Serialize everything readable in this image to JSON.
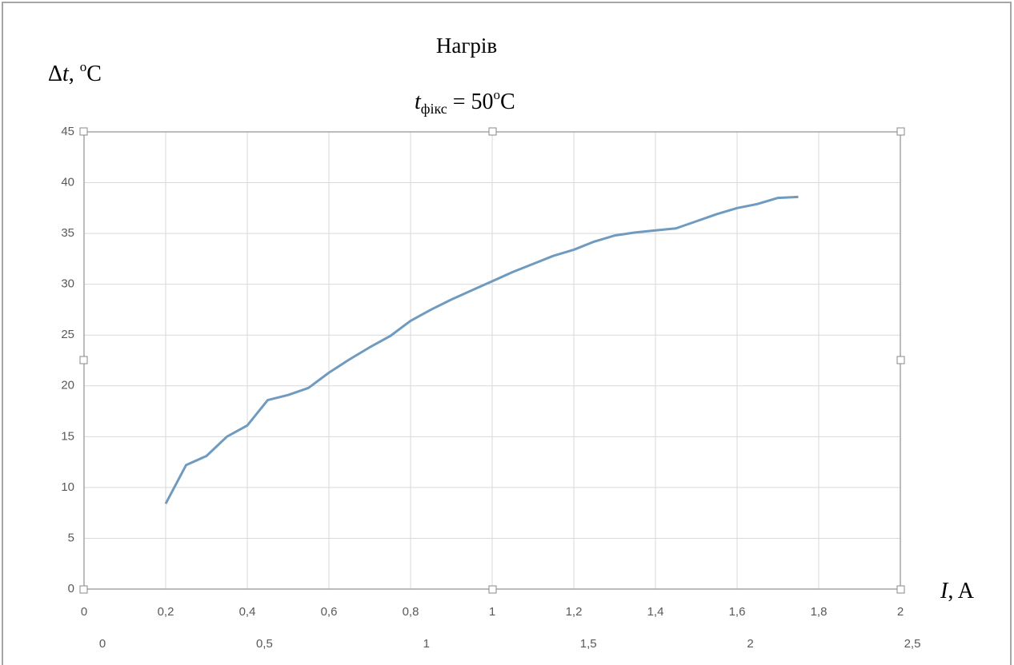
{
  "chart_data": {
    "type": "line",
    "title": "Нагрів",
    "subtitle_parts": [
      "t",
      "фікс",
      " = 50",
      "o",
      "C"
    ],
    "y_label_parts": [
      "Δ",
      "t",
      ", ",
      "o",
      "C"
    ],
    "x_label_parts": [
      "I",
      ", A"
    ],
    "x": [
      0.2,
      0.25,
      0.3,
      0.35,
      0.4,
      0.45,
      0.5,
      0.55,
      0.6,
      0.65,
      0.7,
      0.75,
      0.8,
      0.85,
      0.9,
      0.95,
      1.0,
      1.05,
      1.1,
      1.15,
      1.2,
      1.25,
      1.3,
      1.35,
      1.4,
      1.45,
      1.5,
      1.55,
      1.6,
      1.65,
      1.7,
      1.75
    ],
    "series": [
      {
        "color": "#6f9bc0",
        "values": [
          8.4,
          12.2,
          13.1,
          15.0,
          16.1,
          18.6,
          19.1,
          19.8,
          21.3,
          22.6,
          23.8,
          24.9,
          26.4,
          27.5,
          28.5,
          29.4,
          30.3,
          31.2,
          32.0,
          32.8,
          33.4,
          34.2,
          34.8,
          35.1,
          35.3,
          35.5,
          36.2,
          36.9,
          37.5,
          37.9,
          38.5,
          38.6
        ]
      }
    ],
    "xlim": [
      0,
      2
    ],
    "xticks": [
      0,
      {
        "value": 0.2,
        "label": "0,2"
      },
      {
        "value": 0.4,
        "label": "0,4"
      },
      {
        "value": 0.6,
        "label": "0,6"
      },
      {
        "value": 0.8,
        "label": "0,8"
      },
      1,
      {
        "value": 1.2,
        "label": "1,2"
      },
      {
        "value": 1.4,
        "label": "1,4"
      },
      {
        "value": 1.6,
        "label": "1,6"
      },
      {
        "value": 1.8,
        "label": "1,8"
      },
      2
    ],
    "x2lim": [
      0,
      2.5
    ],
    "x2ticks": [
      0,
      {
        "value": 0.5,
        "label": "0,5"
      },
      1,
      {
        "value": 1.5,
        "label": "1,5"
      },
      2,
      {
        "value": 2.5,
        "label": "2,5"
      }
    ],
    "ylim": [
      0,
      45
    ],
    "yticks": [
      0,
      5,
      10,
      15,
      20,
      25,
      30,
      35,
      40,
      45
    ],
    "grid": true
  }
}
